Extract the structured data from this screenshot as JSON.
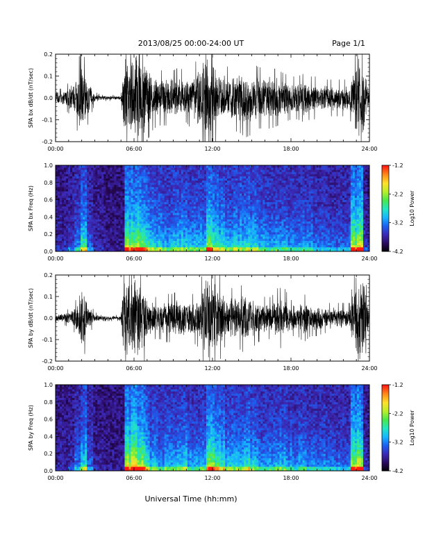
{
  "header": {
    "title": "2013/08/25  00:00-24:00 UT",
    "page": "Page 1/1"
  },
  "footer": {
    "xlabel": "Universal Time (hh:mm)"
  },
  "colors": {
    "trace": "#000000",
    "background": "#ffffff",
    "colormap": [
      "#000000",
      "#2a0a5e",
      "#3c28b4",
      "#1d5ff0",
      "#17b4ff",
      "#23e6c2",
      "#49e84e",
      "#b8ef2a",
      "#ffe02a",
      "#ff8a1a",
      "#ff1a12"
    ]
  },
  "chart_data": [
    {
      "type": "line",
      "ylabel": "SPA bx dB/dt (nT/sec)",
      "xlim": [
        0,
        24
      ],
      "ylim": [
        -0.2,
        0.2
      ],
      "x_ticks": [
        "00:00",
        "06:00",
        "12:00",
        "18:00",
        "24:00"
      ],
      "y_ticks": [
        "0.2",
        "0.1",
        "0.0",
        "-0.1",
        "-0.2"
      ],
      "grid": false,
      "series": [
        {
          "x": [
            0,
            0.5,
            1,
            1.5,
            2,
            2.5,
            3,
            3.5,
            4,
            4.5,
            5,
            5.2,
            5.5,
            6,
            6.5,
            7,
            7.5,
            8,
            8.5,
            9,
            9.5,
            10,
            10.5,
            11,
            11.5,
            12,
            12.5,
            13,
            13.5,
            14,
            14.5,
            15,
            15.5,
            16,
            16.5,
            17,
            17.5,
            18,
            18.5,
            19,
            19.5,
            20,
            20.5,
            21,
            21.5,
            22,
            22.5,
            23,
            23.5,
            24
          ],
          "amplitude": [
            0.03,
            0.03,
            0.05,
            0.08,
            0.17,
            0.08,
            0.02,
            0.01,
            0.01,
            0.01,
            0.01,
            0.2,
            0.2,
            0.2,
            0.2,
            0.14,
            0.1,
            0.09,
            0.09,
            0.09,
            0.1,
            0.08,
            0.11,
            0.13,
            0.2,
            0.17,
            0.13,
            0.1,
            0.11,
            0.11,
            0.13,
            0.12,
            0.1,
            0.1,
            0.1,
            0.09,
            0.08,
            0.07,
            0.07,
            0.08,
            0.07,
            0.07,
            0.06,
            0.06,
            0.06,
            0.06,
            0.06,
            0.2,
            0.2,
            0.03
          ]
        }
      ]
    },
    {
      "type": "heatmap",
      "ylabel": "SPA bx Freq (Hz)",
      "xlim": [
        0,
        24
      ],
      "ylim": [
        0,
        1.0
      ],
      "x_ticks": [
        "00:00",
        "06:00",
        "12:00",
        "18:00",
        "24:00"
      ],
      "y_ticks": [
        "1.0",
        "0.8",
        "0.6",
        "0.4",
        "0.2",
        "0.0"
      ],
      "colorbar": {
        "label": "Log10 Power",
        "range": [
          -4.2,
          -1.2
        ],
        "ticks": [
          "-1.2",
          "-2.2",
          "-3.2",
          "-4.2"
        ]
      },
      "activity": [
        0.12,
        0.12,
        0.2,
        0.35,
        0.65,
        0.3,
        0.12,
        0.08,
        0.05,
        0.05,
        0.05,
        0.85,
        0.9,
        0.8,
        0.7,
        0.55,
        0.5,
        0.45,
        0.5,
        0.5,
        0.55,
        0.45,
        0.5,
        0.55,
        0.8,
        0.7,
        0.6,
        0.5,
        0.55,
        0.55,
        0.6,
        0.55,
        0.5,
        0.5,
        0.45,
        0.45,
        0.4,
        0.4,
        0.38,
        0.4,
        0.38,
        0.35,
        0.33,
        0.32,
        0.3,
        0.3,
        0.3,
        0.85,
        0.9,
        0.15
      ]
    },
    {
      "type": "line",
      "ylabel": "SPA by dB/dt (nT/sec)",
      "xlim": [
        0,
        24
      ],
      "ylim": [
        -0.2,
        0.2
      ],
      "x_ticks": [
        "00:00",
        "06:00",
        "12:00",
        "18:00",
        "24:00"
      ],
      "y_ticks": [
        "0.2",
        "0.1",
        "0.0",
        "-0.1",
        "-0.2"
      ],
      "grid": false,
      "series": [
        {
          "x": [
            0,
            0.5,
            1,
            1.5,
            2,
            2.5,
            3,
            3.5,
            4,
            4.5,
            5,
            5.2,
            5.5,
            6,
            6.5,
            7,
            7.5,
            8,
            8.5,
            9,
            9.5,
            10,
            10.5,
            11,
            11.5,
            12,
            12.5,
            13,
            13.5,
            14,
            14.5,
            15,
            15.5,
            16,
            16.5,
            17,
            17.5,
            18,
            18.5,
            19,
            19.5,
            20,
            20.5,
            21,
            21.5,
            22,
            22.5,
            23,
            23.5,
            24
          ],
          "amplitude": [
            0.02,
            0.02,
            0.03,
            0.05,
            0.17,
            0.06,
            0.02,
            0.01,
            0.01,
            0.01,
            0.01,
            0.2,
            0.2,
            0.2,
            0.2,
            0.1,
            0.07,
            0.07,
            0.08,
            0.08,
            0.1,
            0.08,
            0.08,
            0.1,
            0.2,
            0.18,
            0.15,
            0.09,
            0.1,
            0.1,
            0.12,
            0.1,
            0.08,
            0.07,
            0.07,
            0.1,
            0.1,
            0.06,
            0.06,
            0.08,
            0.06,
            0.06,
            0.05,
            0.05,
            0.05,
            0.05,
            0.05,
            0.2,
            0.2,
            0.02
          ]
        }
      ]
    },
    {
      "type": "heatmap",
      "ylabel": "SPA by Freq (Hz)",
      "xlim": [
        0,
        24
      ],
      "ylim": [
        0,
        1.0
      ],
      "x_ticks": [
        "00:00",
        "06:00",
        "12:00",
        "18:00",
        "24:00"
      ],
      "y_ticks": [
        "1.0",
        "0.8",
        "0.6",
        "0.4",
        "0.2",
        "0.0"
      ],
      "colorbar": {
        "label": "Log10 Power",
        "range": [
          -4.2,
          -1.2
        ],
        "ticks": [
          "-1.2",
          "-2.2",
          "-3.2",
          "-4.2"
        ]
      },
      "activity": [
        0.1,
        0.1,
        0.15,
        0.3,
        0.6,
        0.25,
        0.1,
        0.07,
        0.05,
        0.05,
        0.05,
        0.9,
        0.95,
        0.85,
        0.7,
        0.5,
        0.45,
        0.45,
        0.5,
        0.5,
        0.55,
        0.45,
        0.45,
        0.5,
        0.8,
        0.75,
        0.65,
        0.5,
        0.55,
        0.55,
        0.65,
        0.55,
        0.45,
        0.4,
        0.4,
        0.5,
        0.5,
        0.4,
        0.38,
        0.4,
        0.36,
        0.35,
        0.33,
        0.32,
        0.3,
        0.3,
        0.3,
        0.85,
        0.9,
        0.15
      ]
    }
  ]
}
